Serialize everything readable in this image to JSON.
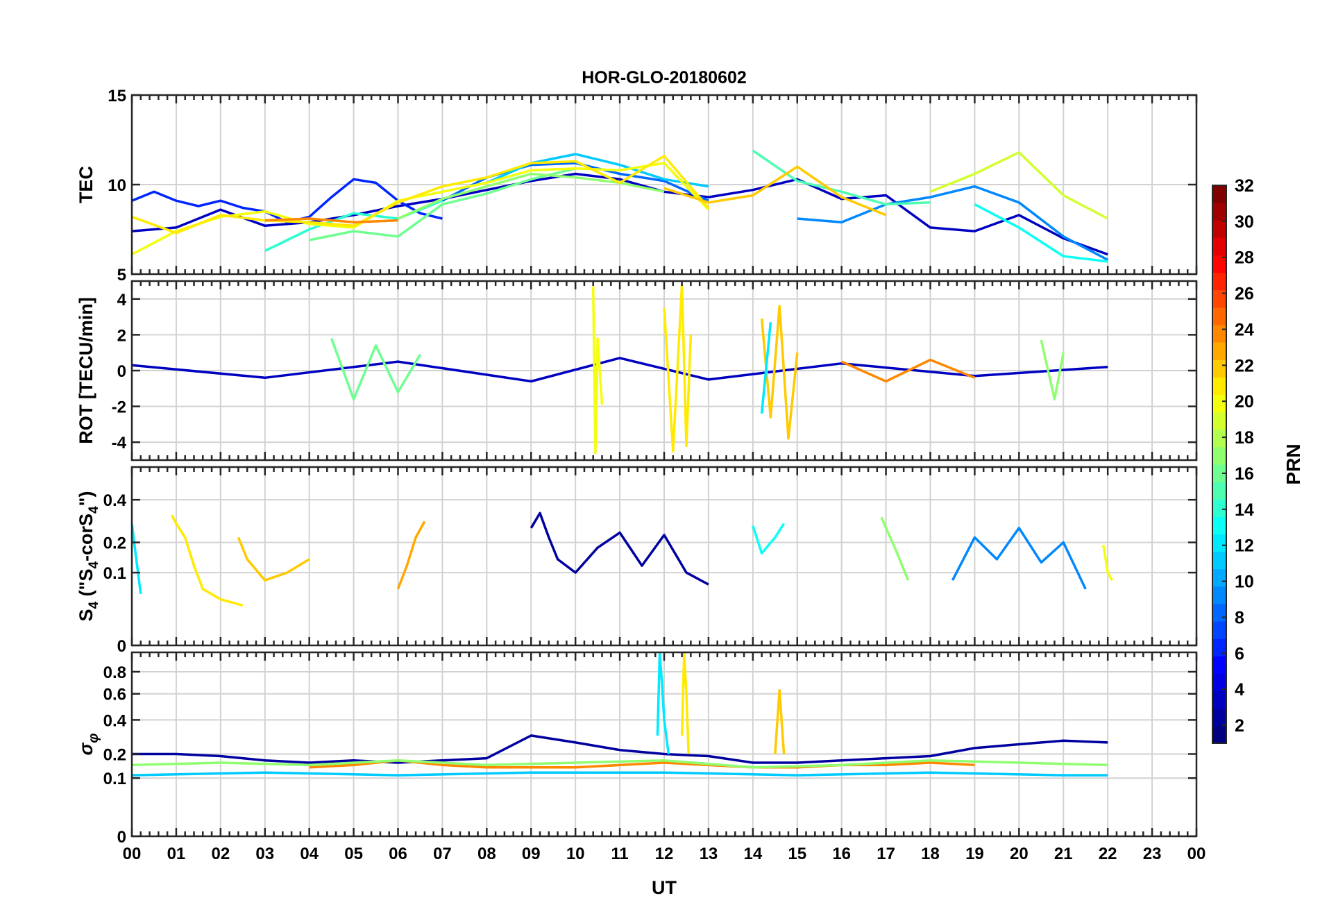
{
  "title": "HOR-GLO-20180602",
  "xlabel": "UT",
  "x_tick_labels": [
    "00",
    "01",
    "02",
    "03",
    "04",
    "05",
    "06",
    "07",
    "08",
    "09",
    "10",
    "11",
    "12",
    "13",
    "14",
    "15",
    "16",
    "17",
    "18",
    "19",
    "20",
    "21",
    "22",
    "23",
    "00"
  ],
  "colorbar": {
    "label": "PRN",
    "range": [
      1,
      32
    ],
    "tick_labels": [
      "2",
      "4",
      "6",
      "8",
      "10",
      "12",
      "14",
      "16",
      "18",
      "20",
      "22",
      "24",
      "26",
      "28",
      "30",
      "32"
    ],
    "colormap": "jet"
  },
  "chart_data": [
    {
      "type": "line",
      "ylabel": "TEC",
      "ylim": [
        5,
        15
      ],
      "xlim": [
        0,
        24
      ],
      "y_tick_labels": [
        "5",
        "10",
        "15"
      ],
      "grid": true,
      "series_description": "one trace per PRN, coloured by PRN",
      "series": [
        {
          "prn": 3,
          "x": [
            0,
            1,
            2,
            3,
            4,
            5,
            6,
            7,
            8,
            9,
            10,
            11,
            12,
            13,
            14,
            15,
            16,
            17,
            18,
            19,
            20,
            21,
            22
          ],
          "values": [
            7.4,
            7.6,
            8.6,
            7.7,
            7.9,
            8.3,
            8.8,
            9.2,
            9.7,
            10.2,
            10.6,
            10.3,
            9.6,
            9.3,
            9.7,
            10.3,
            9.2,
            9.4,
            7.6,
            7.4,
            8.3,
            7.0,
            6.1
          ]
        },
        {
          "prn": 6,
          "x": [
            0,
            0.5,
            1,
            1.5,
            2,
            2.5,
            3,
            3.5,
            4,
            4.5,
            5,
            5.5,
            6,
            6.5,
            7
          ],
          "values": [
            9.1,
            9.6,
            9.1,
            8.8,
            9.1,
            8.7,
            8.5,
            7.9,
            8.2,
            9.3,
            10.3,
            10.1,
            9.1,
            8.4,
            8.1
          ]
        },
        {
          "prn": 8,
          "x": [
            7,
            8,
            9,
            10,
            11,
            12,
            13
          ],
          "values": [
            9.1,
            10.4,
            11.1,
            11.2,
            10.6,
            10.2,
            9.1
          ]
        },
        {
          "prn": 9,
          "x": [
            15,
            16,
            17,
            18,
            19,
            20,
            21,
            22
          ],
          "values": [
            8.1,
            7.9,
            8.9,
            9.3,
            9.9,
            9.0,
            7.1,
            5.8
          ]
        },
        {
          "prn": 11,
          "x": [
            8,
            9,
            10,
            11,
            12,
            13
          ],
          "values": [
            10.1,
            11.2,
            11.7,
            11.1,
            10.3,
            9.9
          ]
        },
        {
          "prn": 13,
          "x": [
            19,
            20,
            21,
            22
          ],
          "values": [
            8.9,
            7.6,
            6.0,
            5.7
          ]
        },
        {
          "prn": 14,
          "x": [
            3,
            4,
            5,
            6,
            7
          ],
          "values": [
            6.3,
            7.5,
            8.4,
            8.1,
            9.1
          ]
        },
        {
          "prn": 15,
          "x": [
            14,
            15,
            16,
            17,
            18
          ],
          "values": [
            11.9,
            10.2,
            9.6,
            8.9,
            9.0
          ]
        },
        {
          "prn": 16,
          "x": [
            4,
            5,
            6,
            7,
            8,
            9,
            10
          ],
          "values": [
            6.9,
            7.4,
            7.1,
            8.9,
            9.5,
            10.3,
            10.9
          ]
        },
        {
          "prn": 17,
          "x": [
            6,
            7,
            8,
            9,
            10,
            11,
            12
          ],
          "values": [
            8.1,
            9.2,
            9.9,
            10.6,
            10.4,
            10.1,
            9.6
          ]
        },
        {
          "prn": 19,
          "x": [
            18,
            19,
            20,
            21,
            22
          ],
          "values": [
            9.6,
            10.6,
            11.8,
            9.4,
            8.1
          ]
        },
        {
          "prn": 20,
          "x": [
            0,
            1,
            2,
            3,
            4,
            5,
            6,
            7,
            8,
            9,
            10,
            11,
            12,
            13
          ],
          "values": [
            6.1,
            7.4,
            8.2,
            8.5,
            7.8,
            7.6,
            9.1,
            9.6,
            10.1,
            10.8,
            10.9,
            10.8,
            11.2,
            8.6
          ]
        },
        {
          "prn": 21,
          "x": [
            0,
            1,
            2,
            3,
            4,
            5,
            6,
            7,
            8,
            9,
            10,
            11,
            12,
            13
          ],
          "values": [
            8.2,
            7.3,
            8.3,
            8.0,
            7.9,
            7.7,
            9.0,
            9.9,
            10.4,
            11.2,
            11.3,
            10.1,
            11.6,
            8.7
          ]
        },
        {
          "prn": 22,
          "x": [
            12,
            13,
            14,
            15,
            16,
            17
          ],
          "values": [
            9.8,
            9.0,
            9.4,
            11.0,
            9.3,
            8.3
          ]
        },
        {
          "prn": 24,
          "x": [
            3,
            4,
            5,
            6
          ],
          "values": [
            8.0,
            8.1,
            7.9,
            8.0
          ]
        }
      ]
    },
    {
      "type": "line",
      "ylabel": "ROT [TECU/min]",
      "ylim": [
        -5,
        5
      ],
      "xlim": [
        0,
        24
      ],
      "y_tick_labels": [
        "-4",
        "-2",
        "0",
        "2",
        "4"
      ],
      "grid": true,
      "series_description": "one trace per PRN, coloured by PRN",
      "series": [
        {
          "prn": 3,
          "x": [
            0,
            3,
            6,
            9,
            11,
            13,
            16,
            19,
            22
          ],
          "values": [
            0.3,
            -0.4,
            0.5,
            -0.6,
            0.7,
            -0.5,
            0.4,
            -0.3,
            0.2
          ]
        },
        {
          "prn": 16,
          "x": [
            4.5,
            5,
            5.5,
            6,
            6.5
          ],
          "values": [
            1.8,
            -1.6,
            1.4,
            -1.2,
            0.9
          ]
        },
        {
          "prn": 20,
          "x": [
            10.4,
            10.45,
            10.5,
            10.6
          ],
          "values": [
            4.7,
            -4.6,
            1.8,
            -1.9
          ]
        },
        {
          "prn": 21,
          "x": [
            12,
            12.2,
            12.4,
            12.5,
            12.6
          ],
          "values": [
            3.5,
            -4.5,
            4.8,
            -4.2,
            2.0
          ]
        },
        {
          "prn": 22,
          "x": [
            14.2,
            14.4,
            14.6,
            14.8,
            15
          ],
          "values": [
            2.9,
            -2.6,
            3.6,
            -3.8,
            1.0
          ]
        },
        {
          "prn": 12,
          "x": [
            14.2,
            14.4
          ],
          "values": [
            -2.4,
            2.7
          ]
        },
        {
          "prn": 24,
          "x": [
            16,
            17,
            18,
            19
          ],
          "values": [
            0.5,
            -0.6,
            0.6,
            -0.4
          ]
        },
        {
          "prn": 17,
          "x": [
            20.5,
            20.8,
            21
          ],
          "values": [
            1.7,
            -1.6,
            1.0
          ]
        }
      ]
    },
    {
      "type": "line",
      "ylabel": "S_4 (\"S_4-corS_4\")",
      "ylim": [
        0,
        0.6
      ],
      "xlim": [
        0,
        24
      ],
      "y_tick_labels": [
        "0",
        "0.1",
        "0.2",
        "0.4"
      ],
      "grid": true,
      "series_description": "one trace per PRN, coloured by PRN",
      "series": [
        {
          "prn": 21,
          "x": [
            0.9,
            1.0,
            1.2,
            1.4,
            1.6,
            2.0,
            2.5
          ],
          "values": [
            0.32,
            0.28,
            0.22,
            0.12,
            0.06,
            0.04,
            0.03
          ]
        },
        {
          "prn": 22,
          "x": [
            2.4,
            2.6,
            3.0,
            3.5,
            4.0
          ],
          "values": [
            0.22,
            0.14,
            0.08,
            0.1,
            0.14
          ]
        },
        {
          "prn": 23,
          "x": [
            6.0,
            6.2,
            6.4,
            6.6
          ],
          "values": [
            0.06,
            0.12,
            0.22,
            0.29
          ]
        },
        {
          "prn": 2,
          "x": [
            9.0,
            9.2,
            9.4,
            9.6,
            10.0,
            10.5,
            11.0,
            11.5,
            12.0,
            12.5,
            13.0
          ],
          "values": [
            0.26,
            0.33,
            0.22,
            0.14,
            0.1,
            0.18,
            0.24,
            0.12,
            0.23,
            0.1,
            0.07
          ]
        },
        {
          "prn": 13,
          "x": [
            14.0,
            14.2,
            14.5,
            14.7
          ],
          "values": [
            0.27,
            0.16,
            0.22,
            0.28
          ]
        },
        {
          "prn": 17,
          "x": [
            16.9,
            17.0,
            17.2,
            17.5
          ],
          "values": [
            0.31,
            0.26,
            0.18,
            0.08
          ]
        },
        {
          "prn": 9,
          "x": [
            18.5,
            19.0,
            19.5,
            20.0,
            20.5,
            21.0,
            21.5
          ],
          "values": [
            0.08,
            0.22,
            0.14,
            0.26,
            0.13,
            0.2,
            0.06
          ]
        },
        {
          "prn": 20,
          "x": [
            21.9,
            22.0,
            22.1
          ],
          "values": [
            0.19,
            0.1,
            0.08
          ]
        },
        {
          "prn": 12,
          "x": [
            0,
            0.1,
            0.2
          ],
          "values": [
            0.28,
            0.14,
            0.05
          ]
        }
      ]
    },
    {
      "type": "line",
      "ylabel": "σ_φ",
      "ylim": [
        0,
        1
      ],
      "xlim": [
        0,
        24
      ],
      "y_tick_labels": [
        "0",
        "0.1",
        "0.2",
        "0.4",
        "0.6",
        "0.8"
      ],
      "grid": true,
      "series_description": "one trace per PRN, coloured by PRN",
      "series": [
        {
          "prn": 2,
          "x": [
            0,
            1,
            2,
            3,
            4,
            5,
            6,
            7,
            8,
            9,
            10,
            11,
            12,
            13,
            14,
            15,
            16,
            17,
            18,
            19,
            20,
            21,
            22
          ],
          "values": [
            0.2,
            0.2,
            0.19,
            0.17,
            0.16,
            0.17,
            0.16,
            0.17,
            0.18,
            0.3,
            0.26,
            0.22,
            0.2,
            0.19,
            0.16,
            0.16,
            0.17,
            0.18,
            0.19,
            0.23,
            0.25,
            0.27,
            0.26
          ]
        },
        {
          "prn": 12,
          "x": [
            11.85,
            11.9,
            11.95,
            12.0,
            12.1
          ],
          "values": [
            0.3,
            0.99,
            0.7,
            0.4,
            0.2
          ]
        },
        {
          "prn": 21,
          "x": [
            12.4,
            12.45,
            12.5,
            12.55
          ],
          "values": [
            0.3,
            0.99,
            0.6,
            0.2
          ]
        },
        {
          "prn": 22,
          "x": [
            14.5,
            14.6,
            14.7
          ],
          "values": [
            0.2,
            0.63,
            0.2
          ]
        },
        {
          "prn": 24,
          "x": [
            4,
            5,
            6,
            7,
            8,
            9,
            10,
            11,
            12,
            13,
            14,
            15,
            16,
            17,
            18,
            19
          ],
          "values": [
            0.14,
            0.15,
            0.17,
            0.15,
            0.14,
            0.14,
            0.14,
            0.15,
            0.16,
            0.15,
            0.14,
            0.14,
            0.15,
            0.15,
            0.16,
            0.15
          ]
        },
        {
          "prn": 17,
          "x": [
            0,
            2,
            4,
            6,
            8,
            10,
            12,
            14,
            16,
            18,
            20,
            22
          ],
          "values": [
            0.15,
            0.16,
            0.15,
            0.17,
            0.15,
            0.16,
            0.17,
            0.14,
            0.15,
            0.17,
            0.16,
            0.15
          ]
        },
        {
          "prn": 11,
          "x": [
            0,
            3,
            6,
            9,
            12,
            15,
            18,
            21,
            22
          ],
          "values": [
            0.11,
            0.12,
            0.11,
            0.12,
            0.12,
            0.11,
            0.12,
            0.11,
            0.11
          ]
        }
      ]
    }
  ]
}
